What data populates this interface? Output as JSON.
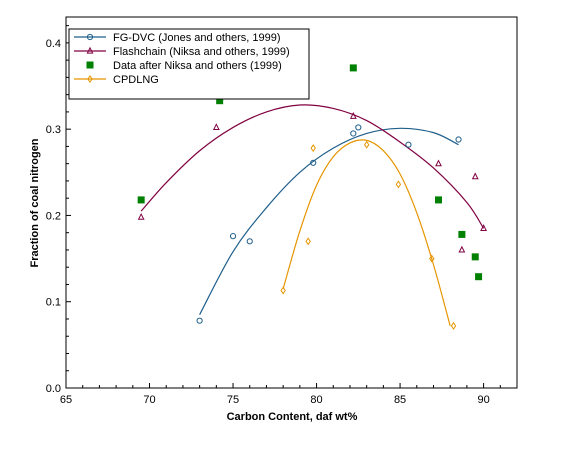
{
  "chart_data": {
    "type": "scatter",
    "title": "",
    "xlabel": "Carbon Content, daf wt%",
    "ylabel": "Fraction of coal nitrogen",
    "xlim": [
      65,
      92
    ],
    "ylim": [
      0,
      0.43
    ],
    "xticks": [
      "65",
      "70",
      "75",
      "80",
      "85",
      "90"
    ],
    "yticks": [
      "0.0",
      "0.1",
      "0.2",
      "0.3",
      "0.4"
    ],
    "grid": false,
    "legend_position": "top-left",
    "series": [
      {
        "name": "FG-DVC (Jones and others, 1999)",
        "color": "#1f5f8b",
        "marker": "circle",
        "points": [
          [
            73.0,
            0.078
          ],
          [
            75.0,
            0.176
          ],
          [
            76.0,
            0.17
          ],
          [
            79.8,
            0.261
          ],
          [
            82.2,
            0.295
          ],
          [
            82.5,
            0.302
          ],
          [
            85.5,
            0.282
          ],
          [
            88.5,
            0.288
          ]
        ],
        "curve": [
          [
            73.0,
            0.085
          ],
          [
            75.0,
            0.158
          ],
          [
            77.0,
            0.209
          ],
          [
            79.0,
            0.25
          ],
          [
            81.0,
            0.278
          ],
          [
            83.0,
            0.295
          ],
          [
            85.0,
            0.301
          ],
          [
            87.0,
            0.296
          ],
          [
            88.5,
            0.282
          ]
        ]
      },
      {
        "name": "Flashchain (Niksa and others, 1999)",
        "color": "#800040",
        "marker": "triangle",
        "points": [
          [
            69.5,
            0.198
          ],
          [
            74.0,
            0.302
          ],
          [
            82.2,
            0.315
          ],
          [
            87.3,
            0.26
          ],
          [
            88.7,
            0.16
          ],
          [
            89.5,
            0.245
          ],
          [
            90.0,
            0.185
          ]
        ],
        "curve": [
          [
            69.5,
            0.205
          ],
          [
            71.0,
            0.238
          ],
          [
            73.0,
            0.275
          ],
          [
            75.0,
            0.302
          ],
          [
            77.0,
            0.32
          ],
          [
            79.0,
            0.328
          ],
          [
            81.0,
            0.324
          ],
          [
            83.0,
            0.31
          ],
          [
            85.0,
            0.285
          ],
          [
            87.0,
            0.255
          ],
          [
            89.0,
            0.215
          ],
          [
            90.0,
            0.185
          ]
        ]
      },
      {
        "name": "Data after Niksa and others (1999)",
        "color": "#008000",
        "marker": "square",
        "points": [
          [
            69.5,
            0.218
          ],
          [
            74.2,
            0.333
          ],
          [
            82.2,
            0.371
          ],
          [
            87.3,
            0.218
          ],
          [
            88.7,
            0.178
          ],
          [
            89.5,
            0.152
          ],
          [
            89.7,
            0.129
          ]
        ]
      },
      {
        "name": "CPDLNG",
        "color": "#e69500",
        "marker": "diamond",
        "points": [
          [
            78.0,
            0.113
          ],
          [
            79.5,
            0.17
          ],
          [
            79.8,
            0.278
          ],
          [
            83.0,
            0.282
          ],
          [
            84.9,
            0.236
          ],
          [
            86.9,
            0.15
          ],
          [
            88.2,
            0.072
          ]
        ],
        "curve": [
          [
            78.0,
            0.115
          ],
          [
            79.0,
            0.182
          ],
          [
            80.0,
            0.235
          ],
          [
            81.0,
            0.268
          ],
          [
            82.0,
            0.284
          ],
          [
            83.0,
            0.287
          ],
          [
            84.0,
            0.275
          ],
          [
            85.0,
            0.248
          ],
          [
            86.0,
            0.203
          ],
          [
            87.0,
            0.143
          ],
          [
            88.0,
            0.072
          ]
        ]
      }
    ]
  }
}
